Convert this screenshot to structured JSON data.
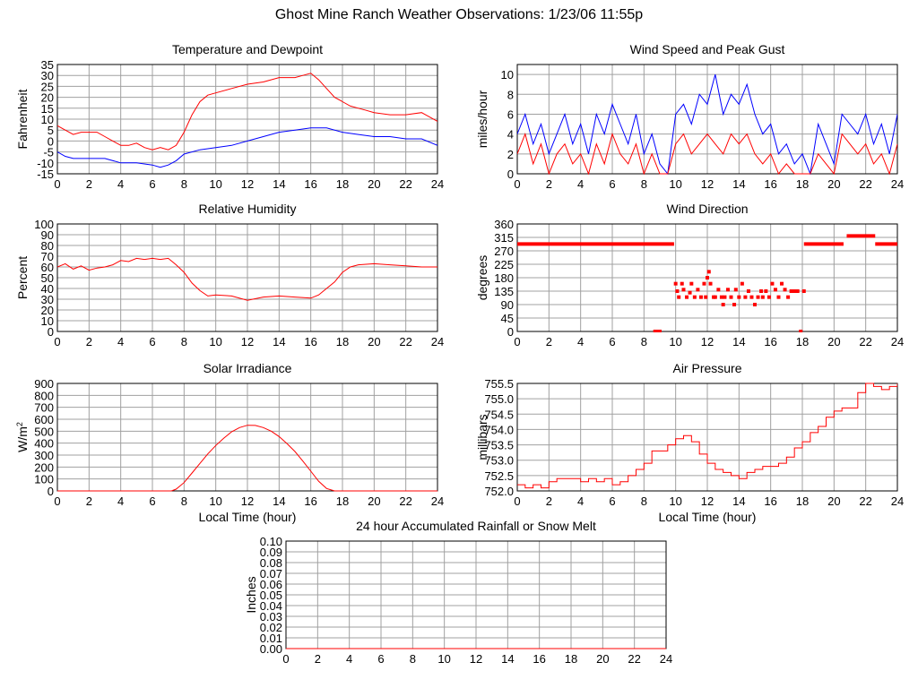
{
  "page": {
    "title": "Ghost Mine Ranch Weather Observations: 1/23/06 11:55p"
  },
  "colors": {
    "red": "#ff0000",
    "blue": "#0000ff",
    "grid": "#a0a0a0",
    "axis": "#000000"
  },
  "chart_data": [
    {
      "id": "temp",
      "type": "line",
      "title": "Temperature and Dewpoint",
      "ylabel": "Fahrenheit",
      "xlabel": "",
      "xlim": [
        0,
        24
      ],
      "ylim": [
        -15,
        35
      ],
      "yticks": [
        -15,
        -10,
        -5,
        0,
        5,
        10,
        15,
        20,
        25,
        30,
        35
      ],
      "xticks": [
        0,
        2,
        4,
        6,
        8,
        10,
        12,
        14,
        16,
        18,
        20,
        22,
        24
      ],
      "grid": true,
      "series": [
        {
          "color": "#ff0000",
          "x": [
            0,
            0.5,
            1,
            1.5,
            2,
            2.5,
            3,
            3.5,
            4,
            4.5,
            5,
            5.5,
            6,
            6.5,
            7,
            7.5,
            8,
            8.5,
            9,
            9.5,
            10,
            11,
            12,
            13,
            14,
            15,
            15.5,
            16,
            16.5,
            17,
            17.5,
            18,
            18.5,
            19,
            19.5,
            20,
            21,
            22,
            23,
            24
          ],
          "y": [
            7,
            5,
            3,
            4,
            4,
            4,
            2,
            0,
            -2,
            -2,
            -1,
            -3,
            -4,
            -3,
            -4,
            -2,
            4,
            12,
            18,
            21,
            22,
            24,
            26,
            27,
            29,
            29,
            30,
            31,
            28,
            24,
            20,
            18,
            16,
            15,
            14,
            13,
            12,
            12,
            13,
            9
          ]
        },
        {
          "color": "#0000ff",
          "x": [
            0,
            0.5,
            1,
            1.5,
            2,
            3,
            4,
            5,
            6,
            6.5,
            7,
            7.5,
            8,
            9,
            10,
            11,
            12,
            13,
            14,
            15,
            16,
            17,
            18,
            19,
            20,
            21,
            22,
            23,
            24
          ],
          "y": [
            -5,
            -7,
            -8,
            -8,
            -8,
            -8,
            -10,
            -10,
            -11,
            -12,
            -11,
            -9,
            -6,
            -4,
            -3,
            -2,
            0,
            2,
            4,
            5,
            6,
            6,
            4,
            3,
            2,
            2,
            1,
            1,
            -2
          ]
        }
      ]
    },
    {
      "id": "wind",
      "type": "line",
      "title": "Wind Speed and Peak Gust",
      "ylabel": "miles/hour",
      "xlabel": "",
      "xlim": [
        0,
        24
      ],
      "ylim": [
        0,
        11
      ],
      "yticks": [
        0,
        2,
        4,
        6,
        8,
        10
      ],
      "xticks": [
        0,
        2,
        4,
        6,
        8,
        10,
        12,
        14,
        16,
        18,
        20,
        22,
        24
      ],
      "grid": true,
      "series": [
        {
          "color": "#0000ff",
          "x": [
            0,
            0.5,
            1,
            1.5,
            2,
            2.5,
            3,
            3.5,
            4,
            4.5,
            5,
            5.5,
            6,
            6.5,
            7,
            7.5,
            8,
            8.5,
            9,
            9.5,
            10,
            10.5,
            11,
            11.5,
            12,
            12.5,
            13,
            13.5,
            14,
            14.5,
            15,
            15.5,
            16,
            16.5,
            17,
            17.5,
            18,
            18.5,
            19,
            19.5,
            20,
            20.5,
            21,
            21.5,
            22,
            22.5,
            23,
            23.5,
            24
          ],
          "y": [
            4,
            6,
            3,
            5,
            2,
            4,
            6,
            3,
            5,
            2,
            6,
            4,
            7,
            5,
            3,
            6,
            2,
            4,
            1,
            0,
            6,
            7,
            5,
            8,
            7,
            10,
            6,
            8,
            7,
            9,
            6,
            4,
            5,
            2,
            3,
            1,
            2,
            0,
            5,
            3,
            1,
            6,
            5,
            4,
            6,
            3,
            5,
            2,
            6
          ]
        },
        {
          "color": "#ff0000",
          "x": [
            0,
            0.5,
            1,
            1.5,
            2,
            2.5,
            3,
            3.5,
            4,
            4.5,
            5,
            5.5,
            6,
            6.5,
            7,
            7.5,
            8,
            8.5,
            9,
            9.5,
            10,
            10.5,
            11,
            11.5,
            12,
            12.5,
            13,
            13.5,
            14,
            14.5,
            15,
            15.5,
            16,
            16.5,
            17,
            17.5,
            18,
            18.5,
            19,
            19.5,
            20,
            20.5,
            21,
            21.5,
            22,
            22.5,
            23,
            23.5,
            24
          ],
          "y": [
            2,
            4,
            1,
            3,
            0,
            2,
            3,
            1,
            2,
            0,
            3,
            1,
            4,
            2,
            1,
            3,
            0,
            2,
            0,
            0,
            3,
            4,
            2,
            3,
            4,
            3,
            2,
            4,
            3,
            4,
            2,
            1,
            2,
            0,
            1,
            0,
            0,
            0,
            2,
            1,
            0,
            4,
            3,
            2,
            3,
            1,
            2,
            0,
            3
          ]
        }
      ]
    },
    {
      "id": "rh",
      "type": "line",
      "title": "Relative Humidity",
      "ylabel": "Percent",
      "xlabel": "",
      "xlim": [
        0,
        24
      ],
      "ylim": [
        0,
        100
      ],
      "yticks": [
        0,
        10,
        20,
        30,
        40,
        50,
        60,
        70,
        80,
        90,
        100
      ],
      "xticks": [
        0,
        2,
        4,
        6,
        8,
        10,
        12,
        14,
        16,
        18,
        20,
        22,
        24
      ],
      "grid": true,
      "series": [
        {
          "color": "#ff0000",
          "x": [
            0,
            0.5,
            1,
            1.5,
            2,
            2.5,
            3,
            3.5,
            4,
            4.5,
            5,
            5.5,
            6,
            6.5,
            7,
            7.5,
            8,
            8.5,
            9,
            9.5,
            10,
            11,
            12,
            13,
            14,
            15,
            16,
            16.5,
            17,
            17.5,
            18,
            18.5,
            19,
            20,
            21,
            22,
            23,
            24
          ],
          "y": [
            60,
            63,
            58,
            61,
            57,
            59,
            60,
            62,
            66,
            65,
            68,
            67,
            68,
            67,
            68,
            62,
            55,
            45,
            38,
            33,
            34,
            33,
            29,
            32,
            33,
            32,
            31,
            34,
            40,
            46,
            55,
            60,
            62,
            63,
            62,
            61,
            60,
            60
          ]
        }
      ]
    },
    {
      "id": "winddir",
      "type": "scatter",
      "title": "Wind Direction",
      "ylabel": "degrees",
      "xlabel": "",
      "xlim": [
        0,
        24
      ],
      "ylim": [
        0,
        360
      ],
      "yticks": [
        0,
        45,
        90,
        135,
        180,
        225,
        270,
        315,
        360
      ],
      "xticks": [
        0,
        2,
        4,
        6,
        8,
        10,
        12,
        14,
        16,
        18,
        20,
        22,
        24
      ],
      "grid": true,
      "series": [
        {
          "color": "#ff0000",
          "segments": [
            [
              0,
              9.9,
              293
            ],
            [
              18.1,
              20.6,
              293
            ],
            [
              20.8,
              22.6,
              320
            ],
            [
              22.6,
              24,
              293
            ]
          ],
          "x": [
            8.7,
            8.9,
            9.0,
            10.0,
            10.1,
            10.2,
            10.4,
            10.5,
            10.7,
            10.9,
            11.0,
            11.2,
            11.4,
            11.6,
            11.8,
            11.9,
            12.0,
            12.1,
            12.2,
            12.4,
            12.5,
            12.7,
            12.9,
            13.0,
            13.1,
            13.3,
            13.5,
            13.7,
            13.8,
            14.0,
            14.2,
            14.4,
            14.6,
            14.8,
            15.0,
            15.2,
            15.4,
            15.5,
            15.7,
            15.9,
            16.1,
            16.3,
            16.5,
            16.7,
            16.9,
            17.1,
            17.3,
            17.5,
            17.7,
            17.9,
            18.1
          ],
          "y": [
            0,
            0,
            0,
            160,
            135,
            115,
            160,
            140,
            115,
            130,
            160,
            115,
            140,
            115,
            160,
            115,
            180,
            200,
            160,
            115,
            115,
            140,
            115,
            90,
            115,
            140,
            115,
            90,
            140,
            115,
            160,
            115,
            135,
            115,
            90,
            115,
            135,
            115,
            135,
            115,
            160,
            140,
            115,
            160,
            140,
            115,
            135,
            135,
            135,
            0,
            135
          ]
        }
      ]
    },
    {
      "id": "solar",
      "type": "line",
      "title": "Solar Irradiance",
      "ylabel": "W/m2",
      "xlabel": "Local Time (hour)",
      "xlim": [
        0,
        24
      ],
      "ylim": [
        0,
        900
      ],
      "yticks": [
        0,
        100,
        200,
        300,
        400,
        500,
        600,
        700,
        800,
        900
      ],
      "xticks": [
        0,
        2,
        4,
        6,
        8,
        10,
        12,
        14,
        16,
        18,
        20,
        22,
        24
      ],
      "grid": true,
      "series": [
        {
          "color": "#ff0000",
          "x": [
            0,
            7.2,
            7.5,
            8,
            8.5,
            9,
            9.5,
            10,
            10.5,
            11,
            11.5,
            12,
            12.5,
            13,
            13.5,
            14,
            14.5,
            15,
            15.5,
            16,
            16.5,
            17,
            17.5,
            24
          ],
          "y": [
            0,
            0,
            15,
            70,
            150,
            230,
            310,
            380,
            440,
            495,
            530,
            550,
            548,
            530,
            500,
            455,
            395,
            330,
            250,
            165,
            80,
            20,
            0,
            0
          ]
        }
      ]
    },
    {
      "id": "pressure",
      "type": "line",
      "title": "Air Pressure",
      "ylabel": "millibars",
      "xlabel": "Local Time (hour)",
      "xlim": [
        0,
        24
      ],
      "ylim": [
        752.0,
        755.5
      ],
      "yticks": [
        752.0,
        752.5,
        753.0,
        753.5,
        754.0,
        754.5,
        755.0,
        755.5
      ],
      "xticklabels_format": "fixed1",
      "xticks": [
        0,
        2,
        4,
        6,
        8,
        10,
        12,
        14,
        16,
        18,
        20,
        22,
        24
      ],
      "grid": true,
      "series": [
        {
          "color": "#ff0000",
          "x": [
            0,
            0.5,
            1,
            1.5,
            2,
            2.5,
            3,
            3.5,
            4,
            4.5,
            5,
            5.5,
            6,
            6.5,
            7,
            7.5,
            8,
            8.5,
            9,
            9.5,
            10,
            10.5,
            11,
            11.5,
            12,
            12.5,
            13,
            13.5,
            14,
            14.5,
            15,
            15.5,
            16,
            16.5,
            17,
            17.5,
            18,
            18.5,
            19,
            19.5,
            20,
            20.5,
            21,
            21.5,
            22,
            22.5,
            23,
            23.5,
            24
          ],
          "y": [
            752.2,
            752.1,
            752.2,
            752.1,
            752.3,
            752.4,
            752.4,
            752.4,
            752.3,
            752.4,
            752.3,
            752.4,
            752.2,
            752.3,
            752.5,
            752.7,
            752.9,
            753.3,
            753.3,
            753.5,
            753.7,
            753.8,
            753.6,
            753.2,
            752.9,
            752.7,
            752.6,
            752.5,
            752.4,
            752.6,
            752.7,
            752.8,
            752.8,
            752.9,
            753.1,
            753.4,
            753.6,
            753.9,
            754.1,
            754.4,
            754.6,
            754.7,
            754.7,
            755.2,
            755.5,
            755.4,
            755.3,
            755.4,
            755.5
          ]
        }
      ]
    },
    {
      "id": "rain",
      "type": "line",
      "title": "24 hour Accumulated Rainfall or Snow Melt",
      "ylabel": "Inches",
      "xlabel": "",
      "xlim": [
        0,
        24
      ],
      "ylim": [
        0,
        0.1
      ],
      "yticks": [
        0.0,
        0.01,
        0.02,
        0.03,
        0.04,
        0.05,
        0.06,
        0.07,
        0.08,
        0.09,
        0.1
      ],
      "xticks": [
        0,
        2,
        4,
        6,
        8,
        10,
        12,
        14,
        16,
        18,
        20,
        22,
        24
      ],
      "grid": true,
      "series": [
        {
          "color": "#ff0000",
          "x": [
            0,
            24
          ],
          "y": [
            0.0,
            0.0
          ]
        }
      ]
    }
  ]
}
